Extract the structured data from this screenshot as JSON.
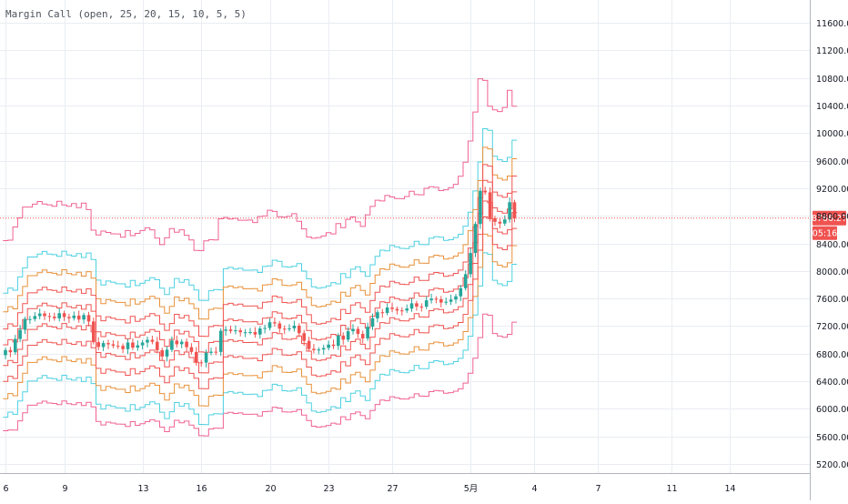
{
  "indicator": {
    "title": "Margin Call (open, 25, 20, 15, 10, 5, 5)"
  },
  "colors": {
    "pink": "#f06292",
    "cyan": "#4dd0e1",
    "orange": "#e8913a",
    "red": "#ef5350",
    "green": "#26a69a",
    "price_line": "#ef5350",
    "grid": "#e9edf2",
    "axis_text": "#131722"
  },
  "chart_data": {
    "type": "candlestick_with_bands",
    "y_axis": {
      "ylim": [
        5000,
        11900
      ],
      "ticks": [
        "5200.00",
        "5600.00",
        "6000.00",
        "6400.00",
        "6800.00",
        "7200.00",
        "7600.00",
        "8000.00",
        "8400.00",
        "8800.00",
        "9200.00",
        "9600.00",
        "10000.00",
        "10400.00",
        "10800.00",
        "11200.00",
        "11600.00"
      ]
    },
    "x_axis": {
      "tick_labels": [
        "6",
        "9",
        "13",
        "16",
        "20",
        "23",
        "27",
        "5月",
        "4",
        "7",
        "11",
        "14"
      ],
      "tick_index": [
        0,
        12,
        28,
        40,
        54,
        66,
        79,
        95,
        108,
        121,
        136,
        148
      ]
    },
    "current_price": {
      "value": 8766.27,
      "label": "8766.27",
      "countdown": "05:16"
    },
    "candles": {
      "open": [
        6778,
        6852,
        6820,
        7013,
        7145,
        7302,
        7302,
        7345,
        7383,
        7346,
        7336,
        7313,
        7387,
        7333,
        7315,
        7352,
        7295,
        7360,
        7266,
        6967,
        6897,
        6954,
        6935,
        6914,
        6913,
        6866,
        6962,
        6888,
        6921,
        6962,
        7001,
        6972,
        6851,
        6758,
        6857,
        6991,
        6937,
        6973,
        6894,
        6825,
        6674,
        6671,
        6812,
        6829,
        6826,
        7132,
        7151,
        7128,
        7139,
        7111,
        7111,
        7114,
        7078,
        7165,
        7173,
        7256,
        7239,
        7162,
        7156,
        7168,
        7206,
        7097,
        6986,
        6869,
        6850,
        6860,
        6883,
        6931,
        6913,
        7062,
        7004,
        7125,
        7159,
        7087,
        7021,
        7190,
        7312,
        7401,
        7391,
        7470,
        7449,
        7427,
        7424,
        7455,
        7531,
        7483,
        7481,
        7574,
        7598,
        7589,
        7542,
        7553,
        7585,
        7632,
        7750,
        7953,
        8260,
        8681,
        9163,
        9140,
        8764,
        8713,
        8688,
        8747,
        8997
      ],
      "close": [
        6852,
        6820,
        7013,
        7145,
        7302,
        7302,
        7345,
        7383,
        7346,
        7336,
        7313,
        7387,
        7333,
        7315,
        7352,
        7295,
        7360,
        7266,
        6967,
        6897,
        6954,
        6935,
        6914,
        6913,
        6866,
        6962,
        6888,
        6921,
        6962,
        7001,
        6972,
        6851,
        6758,
        6857,
        6991,
        6937,
        6973,
        6894,
        6825,
        6674,
        6671,
        6812,
        6829,
        6826,
        7132,
        7151,
        7128,
        7139,
        7111,
        7111,
        7114,
        7078,
        7165,
        7173,
        7256,
        7239,
        7162,
        7156,
        7168,
        7206,
        7097,
        6986,
        6869,
        6850,
        6860,
        6883,
        6931,
        6913,
        7062,
        7004,
        7125,
        7159,
        7087,
        7021,
        7190,
        7312,
        7401,
        7391,
        7470,
        7449,
        7427,
        7424,
        7455,
        7531,
        7483,
        7481,
        7574,
        7598,
        7589,
        7542,
        7553,
        7585,
        7632,
        7750,
        7953,
        8260,
        8681,
        9163,
        9140,
        8764,
        8713,
        8688,
        8747,
        8997,
        8766
      ]
    },
    "bands": [
      {
        "color": "pink",
        "values": [
          8440,
          8446,
          8638,
          8769,
          8926,
          8926,
          8969,
          9007,
          8970,
          8960,
          8937,
          9011,
          8957,
          8939,
          8976,
          8919,
          8984,
          8890,
          8591,
          8521,
          8578,
          8559,
          8538,
          8537,
          8490,
          8586,
          8512,
          8545,
          8586,
          8625,
          8596,
          8475,
          8382,
          8481,
          8615,
          8561,
          8597,
          8518,
          8449,
          8298,
          8295,
          8436,
          8453,
          8450,
          8756,
          8775,
          8752,
          8763,
          8735,
          8735,
          8738,
          8702,
          8789,
          8797,
          8880,
          8863,
          8786,
          8780,
          8792,
          8830,
          8721,
          8610,
          8493,
          8474,
          8484,
          8507,
          8555,
          8537,
          8686,
          8628,
          8749,
          8783,
          8711,
          8645,
          8814,
          8936,
          9025,
          9015,
          9094,
          9073,
          9051,
          9048,
          9079,
          9155,
          9107,
          9105,
          9198,
          9222,
          9213,
          9166,
          9177,
          9209,
          9256,
          9374,
          9577,
          9884,
          10305,
          10787,
          10764,
          10388,
          10337,
          10312,
          10371,
          10621,
          10390
        ]
      },
      {
        "color": "pink",
        "values": [
          5681,
          5693,
          5692,
          5825,
          5941,
          6052,
          6052,
          6083,
          6110,
          6084,
          6077,
          6061,
          6113,
          6075,
          6062,
          6089,
          6048,
          6094,
          6028,
          5816,
          5766,
          5807,
          5794,
          5779,
          5778,
          5745,
          5813,
          5761,
          5784,
          5813,
          5841,
          5820,
          5734,
          5669,
          5739,
          5834,
          5796,
          5821,
          5765,
          5716,
          5610,
          5608,
          5708,
          5720,
          5718,
          5935,
          5948,
          5932,
          5940,
          5920,
          5920,
          5922,
          5897,
          5959,
          5964,
          6023,
          6011,
          5956,
          5952,
          5961,
          5988,
          5910,
          5831,
          5748,
          5735,
          5742,
          5758,
          5792,
          5779,
          5885,
          5844,
          5930,
          5954,
          5903,
          5856,
          5976,
          6063,
          6126,
          6119,
          6175,
          6160,
          6144,
          6142,
          6164,
          6218,
          6184,
          6183,
          6249,
          6266,
          6259,
          6226,
          6234,
          6256,
          6290,
          6373,
          6517,
          6734,
          7033,
          7375,
          7358,
          7092,
          7055,
          7038,
          7080,
          7257
        ]
      },
      {
        "color": "cyan",
        "bandwidth": 900
      },
      {
        "color": "cyan",
        "bandwidth": -900
      },
      {
        "color": "orange",
        "bandwidth": 630
      },
      {
        "color": "orange",
        "bandwidth": -630
      },
      {
        "color": "red",
        "bandwidth": 380
      },
      {
        "color": "red",
        "bandwidth": -380
      },
      {
        "color": "red",
        "bandwidth": 150
      },
      {
        "color": "red",
        "bandwidth": -150
      }
    ]
  }
}
